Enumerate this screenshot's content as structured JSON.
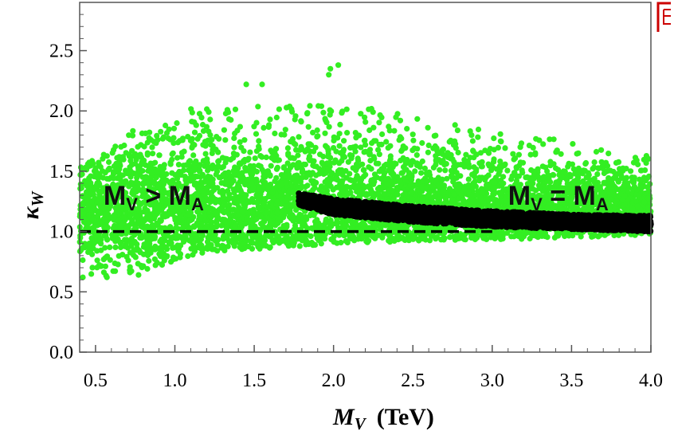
{
  "chart_data": {
    "type": "scatter",
    "title": "",
    "xlabel": "M_V  (TeV)",
    "xlabel_main": "M",
    "xlabel_sub": "V",
    "xlabel_unit": "(TeV)",
    "ylabel": "κ_W",
    "ylabel_main": "κ",
    "ylabel_sub": "W",
    "xlim": [
      0.4,
      4.0
    ],
    "ylim": [
      0.0,
      2.9
    ],
    "x_ticks": [
      "0.5",
      "1.0",
      "1.5",
      "2.0",
      "2.5",
      "3.0",
      "3.5",
      "4.0"
    ],
    "y_ticks": [
      "0.0",
      "0.5",
      "1.0",
      "1.5",
      "2.0",
      "2.5"
    ],
    "reference_line": {
      "y": 1.0,
      "style": "dashed",
      "color": "#000000"
    },
    "series": [
      {
        "color": "#33ee22",
        "region": {
          "x_min": 0.4,
          "x_max": 4.0,
          "envelope_x": [
            0.4,
            0.6,
            0.8,
            1.0,
            1.3,
            1.6,
            2.0,
            2.5,
            3.0,
            3.5,
            4.0
          ],
          "y_low": [
            0.62,
            0.62,
            0.64,
            0.76,
            0.84,
            0.86,
            0.9,
            0.92,
            0.93,
            0.95,
            0.97
          ],
          "y_high": [
            1.55,
            1.7,
            1.9,
            2.0,
            2.05,
            2.05,
            2.1,
            1.95,
            1.85,
            1.75,
            1.65
          ],
          "outliers": [
            [
              1.98,
              2.35
            ],
            [
              2.03,
              2.38
            ],
            [
              1.97,
              2.3
            ],
            [
              1.55,
              2.22
            ],
            [
              1.45,
              2.22
            ],
            [
              0.45,
              1.4
            ],
            [
              0.42,
              0.62
            ]
          ]
        }
      },
      {
        "color": "#000000",
        "band": {
          "x": [
            1.78,
            2.0,
            2.5,
            3.0,
            3.5,
            4.0
          ],
          "y_low": [
            1.22,
            1.14,
            1.08,
            1.04,
            1.02,
            1.0
          ],
          "y_high": [
            1.32,
            1.27,
            1.21,
            1.17,
            1.14,
            1.13
          ]
        }
      }
    ],
    "annotations": [
      {
        "main": "M",
        "sub1": "V",
        "op": " > ",
        "sub2": "A",
        "x": 0.55,
        "y": 1.3
      },
      {
        "main": "M",
        "sub1": "V",
        "op": " = ",
        "sub2": "A",
        "x": 3.1,
        "y": 1.3
      }
    ]
  },
  "colors": {
    "frame": "#555555",
    "green_points": "#33ee22",
    "black_points": "#000000",
    "edge_mark": "#cc0000"
  }
}
